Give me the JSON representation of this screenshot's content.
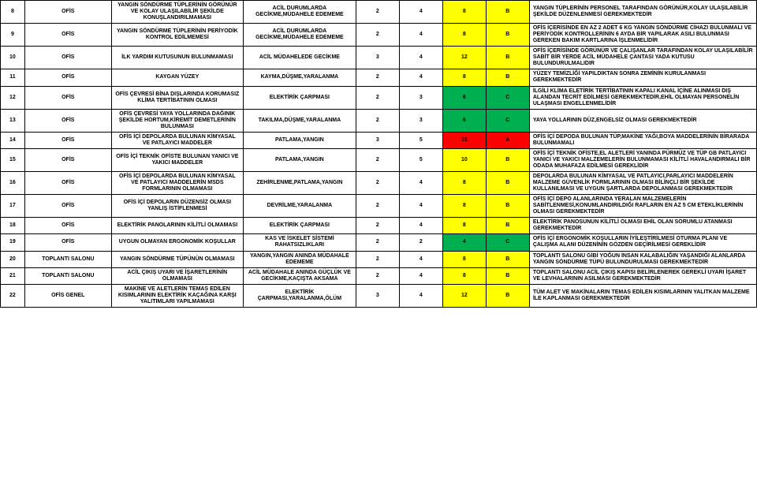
{
  "colors": {
    "A": "#ff0000",
    "B": "#ffff00",
    "C": "#00b050",
    "text": "#000000"
  },
  "rows": [
    {
      "id": "8",
      "loc": "OFİS",
      "hazard": "YANGIN SÖNDÜRME TÜPLERİNİN GÖRÜNÜR VE KOLAY ULAŞILABİLİR ŞEKİLDE KONUŞLANDIRILMAMASI",
      "risk": "ACİL DURUMLARDA GECİKME,MÜDAHELE EDEMEME",
      "s": "2",
      "o": "4",
      "rs": "8",
      "grade": "B",
      "action": "YANGIN TÜPLERİNİN PERSONEL TARAFINDAN GÖRÜNÜR,KOLAY ULAŞILABİLİR ŞEKİLDE DÜZENLENMESİ GEREKMEKTEDİR"
    },
    {
      "id": "9",
      "loc": "OFİS",
      "hazard": "YANGIN SÖNDÜRME TÜPLERİNİN PERİYODİK KONTROL EDİLMEMESİ",
      "risk": "ACİL DURUMLARDA GECİKME,MÜDAHELE EDEMEME",
      "s": "2",
      "o": "4",
      "rs": "8",
      "grade": "B",
      "action": "OFİS İÇERİSİNDE EN AZ 2 ADET 6 KG YANGIN SÖNDÜRME CİHAZI BULUNMALI VE PERİYODİK KONTROLLERİNİN 6 AYDA BİR YAPILARAK ASILI BULUNMASI GEREKEN BAKIM KARTLARINA İŞLENMELİDİR"
    },
    {
      "id": "10",
      "loc": "OFİS",
      "hazard": "İLK YARDIM KUTUSUNUN BULUNMAMASI",
      "risk": "ACİL MÜDAHELEDE GECİKME",
      "s": "3",
      "o": "4",
      "rs": "12",
      "grade": "B",
      "action": "OFİS İÇERİSİNDE GÖRÜNÜR VE ÇALIŞANLAR TARAFINDAN KOLAY ULAŞILABİLİR SABİT BİR YERDE ACİL MÜDAHELE ÇANTASI YADA KUTUSU BULUNDURULMALIDIR"
    },
    {
      "id": "11",
      "loc": "OFİS",
      "hazard": "KAYGAN YÜZEY",
      "risk": "KAYMA,DÜŞME,YARALANMA",
      "s": "2",
      "o": "4",
      "rs": "8",
      "grade": "B",
      "action": "YÜZEY TEMİZLİĞİ YAPILDIKTAN SONRA ZEMİNİN KURULANMASI GEREKMEKTEDİR"
    },
    {
      "id": "12",
      "loc": "OFİS",
      "hazard": "OFİS ÇEVRESİ BİNA DIŞLARINDA KORUMASIZ KLİMA TERTİBATININ OLMASI",
      "risk": "ELEKTİRİK ÇARPMASI",
      "s": "2",
      "o": "3",
      "rs": "6",
      "grade": "C",
      "action": "İLGİLİ KLİMA ELETİRİK TERTİBATININ KAPALI KANAL İÇİNE ALINMASI DIŞ ALANDAN TECRİT EDİLMESİ GEREKMEKTEDİR,EHİL OLMAYAN PERSONELİN ULAŞMASI ENGELLENMELİDİR"
    },
    {
      "id": "13",
      "loc": "OFİS",
      "hazard": "OFİS ÇEVRESİ YAYA YOLLARINDA DAĞINIK ŞEKİLDE HORTUM,KİREMİT DEMETLERİNİN BULUNMASI",
      "risk": "TAKILMA,DÜŞME,YARALANMA",
      "s": "2",
      "o": "3",
      "rs": "6",
      "grade": "C",
      "action": "YAYA YOLLARININ DÜZ,ENGELSİZ OLMASI GEREKMEKTEDİR"
    },
    {
      "id": "14",
      "loc": "OFİS",
      "hazard": "OFİS İÇİ DEPOLARDA BULUNAN KİMYASAL VE PATLAYICI MADDELER",
      "risk": "PATLAMA,YANGIN",
      "s": "3",
      "o": "5",
      "rs": "15",
      "grade": "A",
      "action": "OFİS İÇİ DEPODA BULUNAN TÜP,MAKİNE YAĞI,BOYA MADDELERİNİN BİRARADA BULUNMAMALI"
    },
    {
      "id": "15",
      "loc": "OFİS",
      "hazard": "OFİS İÇİ TEKNİK OFİSTE BULUNAN YANICI VE YAKICI MADDELER",
      "risk": "PATLAMA,YANGIN",
      "s": "2",
      "o": "5",
      "rs": "10",
      "grade": "B",
      "action": "OFİS İÇİ TEKNİK OFİSTE,EL ALETLERİ YANINDA PÜRMÜZ VE TÜP GB PATLAYICI YANICI VE YAKICI MALZEMELERİN BULUNMAMASI KİLİTLİ HAVALANDIRMALI BİR ODADA MUHAFAZA EDİLMESİ GEREKLİDİR"
    },
    {
      "id": "16",
      "loc": "OFİS",
      "hazard": "OFİS İÇİ DEPOLARDA BULUNAN KİMYASAL VE PATLAYICI MADDELERİN MSDS FORMLARININ OLMAMASI",
      "risk": "ZEHİRLENME,PATLAMA,YANGIN",
      "s": "2",
      "o": "4",
      "rs": "8",
      "grade": "B",
      "action": "DEPOLARDA BULUNAN KİMYASAL VE PATLAYICI,PARLAYICI MADDELERİN MALZEME GÜVENLİK FORMLARININ OLMASI BİLİNÇLİ BİR ŞEKİLDE KULLANILMASI VE UYGUN ŞARTLARDA DEPOLANMASI GEREKMEKTEDİR"
    },
    {
      "id": "17",
      "loc": "OFİS",
      "hazard": "OFİS İÇİ DEPOLARIN DÜZENSİZ OLMASI YANLIŞ İSTİFLENMESİ",
      "risk": "DEVRİLME,YARALANMA",
      "s": "2",
      "o": "4",
      "rs": "8",
      "grade": "B",
      "action": "OFİS İÇİ DEPO ALANLARINDA YERALAN MALZEMELERİN SABİTLENMESİ,KONUMLANDIRILDIĞI RAFLARIN EN AZ 5 CM ETEKLİKLERİNİN OLMASI GEREKMEKTEDİR"
    },
    {
      "id": "18",
      "loc": "OFİS",
      "hazard": "ELEKTİRİK PANOLARININ KİLİTLİ OLMAMASI",
      "risk": "ELEKTİRİK ÇARPMASI",
      "s": "2",
      "o": "4",
      "rs": "8",
      "grade": "B",
      "action": "ELEKTİRİK PANOSUNUN KİLİTLİ OLMASI EHİL OLAN SORUMLU ATANMASI GEREKMEKTEDİR"
    },
    {
      "id": "19",
      "loc": "OFİS",
      "hazard": "UYGUN OLMAYAN ERGONOMİK KOŞULLAR",
      "risk": "KAS VE İSKELET SİSTEMİ RAHATSIZLIKLARI",
      "s": "2",
      "o": "2",
      "rs": "4",
      "grade": "C",
      "action": "OFİS İÇİ ERGONOMİK KOŞULLARIN İYİLEŞTİRİLMESİ OTURMA PLANI VE ÇALIŞMA ALANI DÜZENİNİN GÖZDEN GEÇİRİLMESİ  GEREKLİDİR"
    },
    {
      "id": "20",
      "loc": "TOPLANTI SALONU",
      "hazard": "YANGIN SÖNDÜRME TÜPÜNÜN OLMAMASI",
      "risk": "YANGIN,YANGIN ANINDA MÜDAHALE EDEMEME",
      "s": "2",
      "o": "4",
      "rs": "8",
      "grade": "B",
      "action": "TOPLANTI SALONU GİBİ YOĞUN İNSAN KALABALIĞIN YAŞANDIĞI ALANLARDA YANGIN SÖNDÜRME TÜPÜ BULUNDURULMASI GEREKMEKTEDİR"
    },
    {
      "id": "21",
      "loc": "TOPLANTI SALONU",
      "hazard": "ACİL ÇIKIŞ UYARI VE İŞARETLERİNİN OLMAMASI",
      "risk": "ACİL MÜDAHALE ANINDA GÜÇLÜK VE GECİKME,KAÇIŞTA AKSAMA",
      "s": "2",
      "o": "4",
      "rs": "8",
      "grade": "B",
      "action": "TOPLANTI SALONU ACİL ÇIKIŞ KAPISI BELİRLENEREK GEREKLİ UYARI İŞARET VE LEVHALARININ ASILMASI GEREKMEKTEDİR"
    },
    {
      "id": "22",
      "loc": "OFİS GENEL",
      "hazard": "MAKİNE VE ALETLERİN TEMAS EDİLEN KISIMLARININ ELEKTİRİK KAÇAĞINA KARŞI YALITIMLARI YAPILMAMASI",
      "risk": "ELEKTİRİK ÇARPMASI,YARALANMA,ÖLÜM",
      "s": "3",
      "o": "4",
      "rs": "12",
      "grade": "B",
      "action": "TÜM ALET VE MAKİNALARIN TEMAS EDİLEN KISIMLARININ YALITKAN MALZEME İLE KAPLANMASI GEREKMEKTEDİR"
    }
  ]
}
